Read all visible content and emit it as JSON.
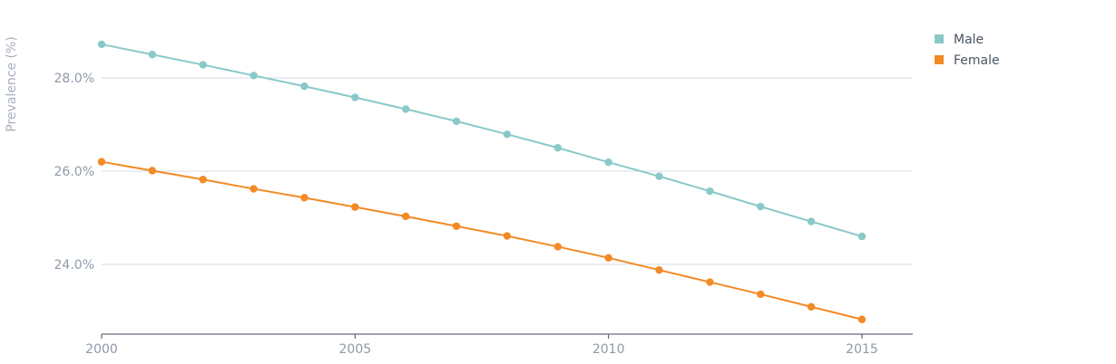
{
  "chart_data": {
    "type": "line",
    "ylabel": "Prevalence (%)",
    "xlabel": "",
    "x": [
      2000,
      2001,
      2002,
      2003,
      2004,
      2005,
      2006,
      2007,
      2008,
      2009,
      2010,
      2011,
      2012,
      2013,
      2014,
      2015
    ],
    "xticks": [
      "2000",
      "2005",
      "2010",
      "2015"
    ],
    "yticks": [
      "24.0%",
      "26.0%",
      "28.0%"
    ],
    "ylim": [
      22.5,
      29.2
    ],
    "grid": true,
    "legend_position": "top-right",
    "series": [
      {
        "name": "Male",
        "color": "#8ac9c9",
        "values": [
          28.72,
          28.5,
          28.28,
          28.05,
          27.82,
          27.58,
          27.33,
          27.07,
          26.79,
          26.5,
          26.19,
          25.89,
          25.57,
          25.24,
          24.92,
          24.6
        ]
      },
      {
        "name": "Female",
        "color": "#f28a25",
        "values": [
          26.2,
          26.01,
          25.82,
          25.62,
          25.43,
          25.23,
          25.03,
          24.82,
          24.61,
          24.38,
          24.14,
          23.88,
          23.62,
          23.36,
          23.09,
          22.82
        ]
      }
    ]
  }
}
